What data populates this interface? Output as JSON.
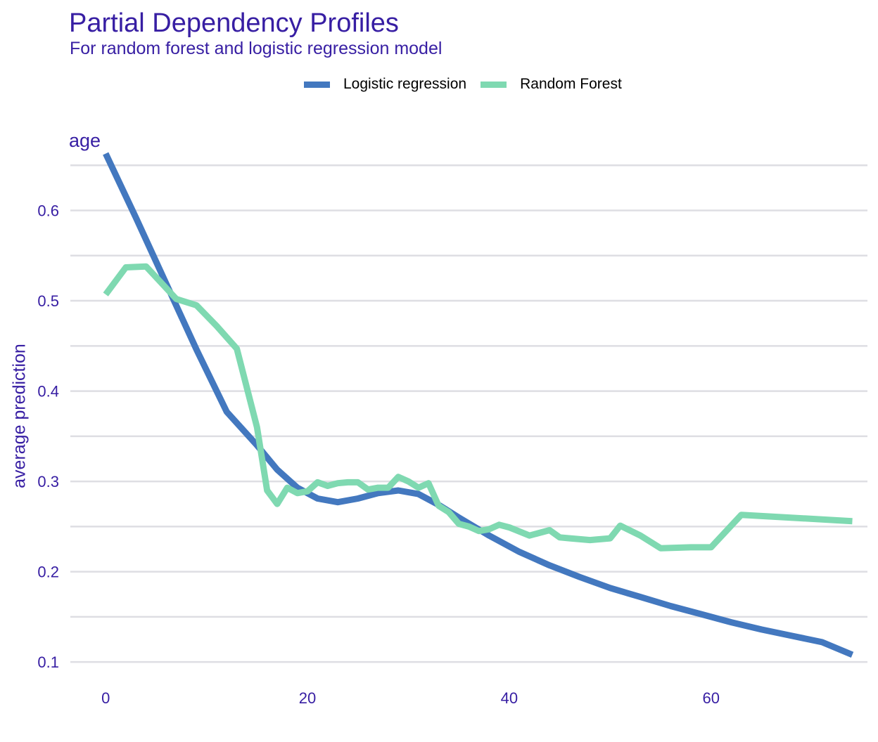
{
  "chart_data": {
    "type": "line",
    "title": "Partial Dependency Profiles",
    "subtitle": "For random forest and logistic regression model",
    "facet": "age",
    "xlabel": "",
    "ylabel": "average prediction",
    "xlim": [
      -3.5,
      75.5
    ],
    "ylim": [
      0.09,
      0.672
    ],
    "x_ticks": [
      0,
      20,
      40,
      60
    ],
    "x_tick_labels": [
      "0",
      "20",
      "40",
      "60"
    ],
    "y_ticks": [
      0.1,
      0.2,
      0.3,
      0.4,
      0.5,
      0.6
    ],
    "y_tick_labels": [
      "0.1",
      "0.2",
      "0.3",
      "0.4",
      "0.5",
      "0.6"
    ],
    "y_minor_ticks": [
      0.15,
      0.25,
      0.35,
      0.45,
      0.55,
      0.65
    ],
    "grid": true,
    "legend_position": "top",
    "series": [
      {
        "name": "Logistic regression",
        "color": "#4378bf",
        "x": [
          0,
          3,
          6,
          9,
          12,
          15,
          17,
          19,
          21,
          23,
          25,
          27,
          29,
          31,
          33,
          35,
          38,
          41,
          44,
          47,
          50,
          53,
          56,
          59,
          62,
          65,
          68,
          71,
          74
        ],
        "y": [
          0.663,
          0.592,
          0.519,
          0.446,
          0.377,
          0.34,
          0.313,
          0.293,
          0.281,
          0.277,
          0.281,
          0.287,
          0.29,
          0.286,
          0.274,
          0.26,
          0.24,
          0.222,
          0.207,
          0.194,
          0.182,
          0.172,
          0.162,
          0.153,
          0.144,
          0.136,
          0.129,
          0.122,
          0.108
        ]
      },
      {
        "name": "Random Forest",
        "color": "#7fd9b1",
        "x": [
          0,
          2,
          4,
          7,
          9,
          11,
          13,
          15,
          16,
          17,
          18,
          19,
          20,
          21,
          22,
          23,
          24,
          25,
          26,
          27,
          28,
          29,
          30,
          31,
          32,
          33,
          34,
          35,
          36,
          37,
          38,
          39,
          40,
          42,
          44,
          45,
          46,
          48,
          50,
          51,
          53,
          55,
          58,
          60,
          63,
          74
        ],
        "y": [
          0.507,
          0.537,
          0.538,
          0.502,
          0.495,
          0.472,
          0.447,
          0.36,
          0.29,
          0.275,
          0.293,
          0.287,
          0.289,
          0.299,
          0.295,
          0.298,
          0.299,
          0.299,
          0.291,
          0.293,
          0.293,
          0.305,
          0.3,
          0.293,
          0.298,
          0.273,
          0.266,
          0.253,
          0.25,
          0.245,
          0.247,
          0.252,
          0.249,
          0.24,
          0.246,
          0.238,
          0.237,
          0.235,
          0.237,
          0.251,
          0.24,
          0.226,
          0.227,
          0.227,
          0.263,
          0.256
        ]
      }
    ]
  }
}
